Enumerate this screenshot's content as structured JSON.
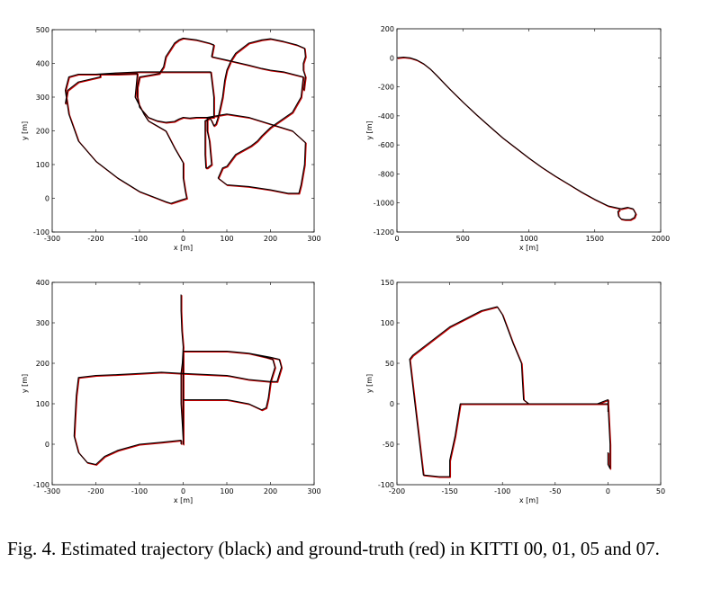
{
  "caption": "Fig. 4.  Estimated trajectory (black) and ground-truth (red) in KITTI 00, 01, 05 and 07.",
  "colors": {
    "estimated": "#000000",
    "ground_truth": "#cc0000"
  },
  "chart_data": [
    {
      "type": "line",
      "xlabel": "x [m]",
      "ylabel": "y [m]",
      "xlim": [
        -300,
        300
      ],
      "ylim": [
        -100,
        500
      ],
      "xticks": [
        -300,
        -200,
        -100,
        0,
        100,
        200,
        300
      ],
      "yticks": [
        -100,
        0,
        100,
        200,
        300,
        400,
        500
      ],
      "grid": false,
      "series": [
        {
          "x": [
            -270,
            -265,
            -240,
            -190,
            -190,
            -185,
            -155,
            -150,
            -105,
            -110,
            -90,
            -80,
            -60,
            -40,
            -20,
            0,
            0,
            5,
            8,
            -5,
            -28,
            -40,
            -60,
            -100,
            -150,
            -200,
            -240,
            -262,
            -270,
            -262,
            -240,
            -200,
            -150,
            -100,
            -20,
            35,
            63,
            70,
            70,
            60,
            58,
            50,
            50,
            52,
            55,
            60,
            65,
            62,
            60,
            55,
            55,
            100,
            150,
            200,
            250,
            280,
            278,
            270,
            265,
            240,
            200,
            150,
            100,
            80,
            90,
            100,
            120,
            155,
            170,
            180,
            200,
            250,
            270,
            275,
            230,
            200,
            180,
            150,
            100,
            65,
            70,
            60,
            30,
            0,
            -10,
            -20,
            -30,
            -40,
            -45,
            -55,
            -100,
            -105,
            -105,
            -100,
            -80,
            -60,
            -40,
            -20,
            -10,
            0,
            15,
            30,
            60,
            65,
            70,
            75,
            80,
            90,
            95,
            100,
            110,
            120,
            150,
            180,
            200,
            230,
            260,
            278,
            280,
            275,
            275,
            280,
            278,
            276
          ],
          "y": [
            280,
            320,
            345,
            360,
            368,
            368,
            368,
            368,
            370,
            300,
            250,
            230,
            215,
            200,
            150,
            105,
            60,
            20,
            0,
            -5,
            -15,
            -10,
            0,
            20,
            60,
            110,
            170,
            250,
            320,
            360,
            368,
            368,
            372,
            375,
            375,
            375,
            375,
            300,
            240,
            240,
            235,
            230,
            130,
            90,
            90,
            95,
            100,
            140,
            170,
            200,
            240,
            250,
            240,
            220,
            200,
            165,
            100,
            40,
            15,
            15,
            25,
            35,
            40,
            60,
            90,
            95,
            130,
            155,
            170,
            185,
            210,
            255,
            300,
            360,
            375,
            380,
            385,
            395,
            410,
            420,
            455,
            460,
            470,
            475,
            470,
            460,
            440,
            420,
            390,
            370,
            360,
            330,
            300,
            270,
            240,
            230,
            225,
            228,
            235,
            240,
            238,
            240,
            240,
            230,
            215,
            220,
            240,
            300,
            350,
            380,
            410,
            430,
            460,
            470,
            473,
            465,
            455,
            445,
            420,
            400,
            380,
            360,
            340,
            320
          ]
        }
      ]
    },
    {
      "type": "line",
      "xlabel": "x [m]",
      "ylabel": "y [m]",
      "xlim": [
        0,
        2000
      ],
      "ylim": [
        -1200,
        200
      ],
      "xticks": [
        0,
        500,
        1000,
        1500,
        2000
      ],
      "yticks": [
        -1200,
        -1000,
        -800,
        -600,
        -400,
        -200,
        0,
        200
      ],
      "grid": false,
      "series": [
        {
          "x": [
            0,
            50,
            100,
            150,
            200,
            250,
            300,
            400,
            500,
            600,
            700,
            800,
            900,
            1000,
            1100,
            1200,
            1300,
            1400,
            1500,
            1600,
            1700,
            1750,
            1790,
            1810,
            1800,
            1770,
            1730,
            1700,
            1680,
            1675,
            1690
          ],
          "y": [
            0,
            5,
            0,
            -15,
            -40,
            -75,
            -120,
            -215,
            -305,
            -390,
            -470,
            -550,
            -620,
            -690,
            -755,
            -815,
            -870,
            -925,
            -975,
            -1020,
            -1040,
            -1030,
            -1040,
            -1075,
            -1100,
            -1115,
            -1115,
            -1110,
            -1090,
            -1060,
            -1045
          ]
        }
      ]
    },
    {
      "type": "line",
      "xlabel": "x [m]",
      "ylabel": "y [m]",
      "xlim": [
        -300,
        300
      ],
      "ylim": [
        -100,
        400
      ],
      "xticks": [
        -300,
        -200,
        -100,
        0,
        100,
        200,
        300
      ],
      "yticks": [
        -100,
        0,
        100,
        200,
        300,
        400
      ],
      "grid": false,
      "series": [
        {
          "x": [
            -5,
            -5,
            -3,
            0,
            -2,
            -5,
            -5,
            -2,
            0,
            0,
            0,
            100,
            150,
            200,
            220,
            225,
            215,
            200,
            195,
            190,
            180,
            150,
            100,
            50,
            0,
            0,
            0,
            50,
            100,
            150,
            190,
            205,
            210,
            200,
            150,
            100,
            0,
            -50,
            -100,
            -150,
            -200,
            -240,
            -245,
            -248,
            -250,
            -240,
            -220,
            -200,
            -180,
            -150,
            -100,
            -50,
            -5,
            -5
          ],
          "y": [
            370,
            330,
            280,
            240,
            200,
            175,
            100,
            50,
            10,
            0,
            230,
            230,
            225,
            215,
            210,
            190,
            155,
            155,
            115,
            90,
            85,
            100,
            110,
            110,
            110,
            175,
            230,
            230,
            230,
            225,
            215,
            210,
            190,
            155,
            160,
            170,
            175,
            178,
            175,
            172,
            170,
            165,
            120,
            60,
            20,
            -20,
            -45,
            -50,
            -30,
            -15,
            0,
            5,
            10,
            0
          ]
        }
      ]
    },
    {
      "type": "line",
      "xlabel": "x [m]",
      "ylabel": "y [m]",
      "xlim": [
        -200,
        50
      ],
      "ylim": [
        -100,
        150
      ],
      "xticks": [
        -200,
        -150,
        -100,
        -50,
        0,
        50
      ],
      "yticks": [
        -100,
        -50,
        0,
        50,
        100,
        150
      ],
      "grid": false,
      "series": [
        {
          "x": [
            0,
            0,
            2,
            2,
            0,
            -10,
            -50,
            -100,
            -140,
            -145,
            -150,
            -150,
            -160,
            -175,
            -188,
            -185,
            -170,
            -150,
            -120,
            -105,
            -100,
            -90,
            -82,
            -80,
            -75,
            -70,
            -65,
            -55,
            -10,
            0,
            0
          ],
          "y": [
            -60,
            -75,
            -80,
            -50,
            0,
            0,
            0,
            0,
            0,
            -40,
            -70,
            -90,
            -90,
            -88,
            55,
            60,
            75,
            95,
            115,
            120,
            110,
            75,
            50,
            5,
            0,
            0,
            0,
            0,
            0,
            5,
            -10
          ]
        }
      ]
    }
  ]
}
